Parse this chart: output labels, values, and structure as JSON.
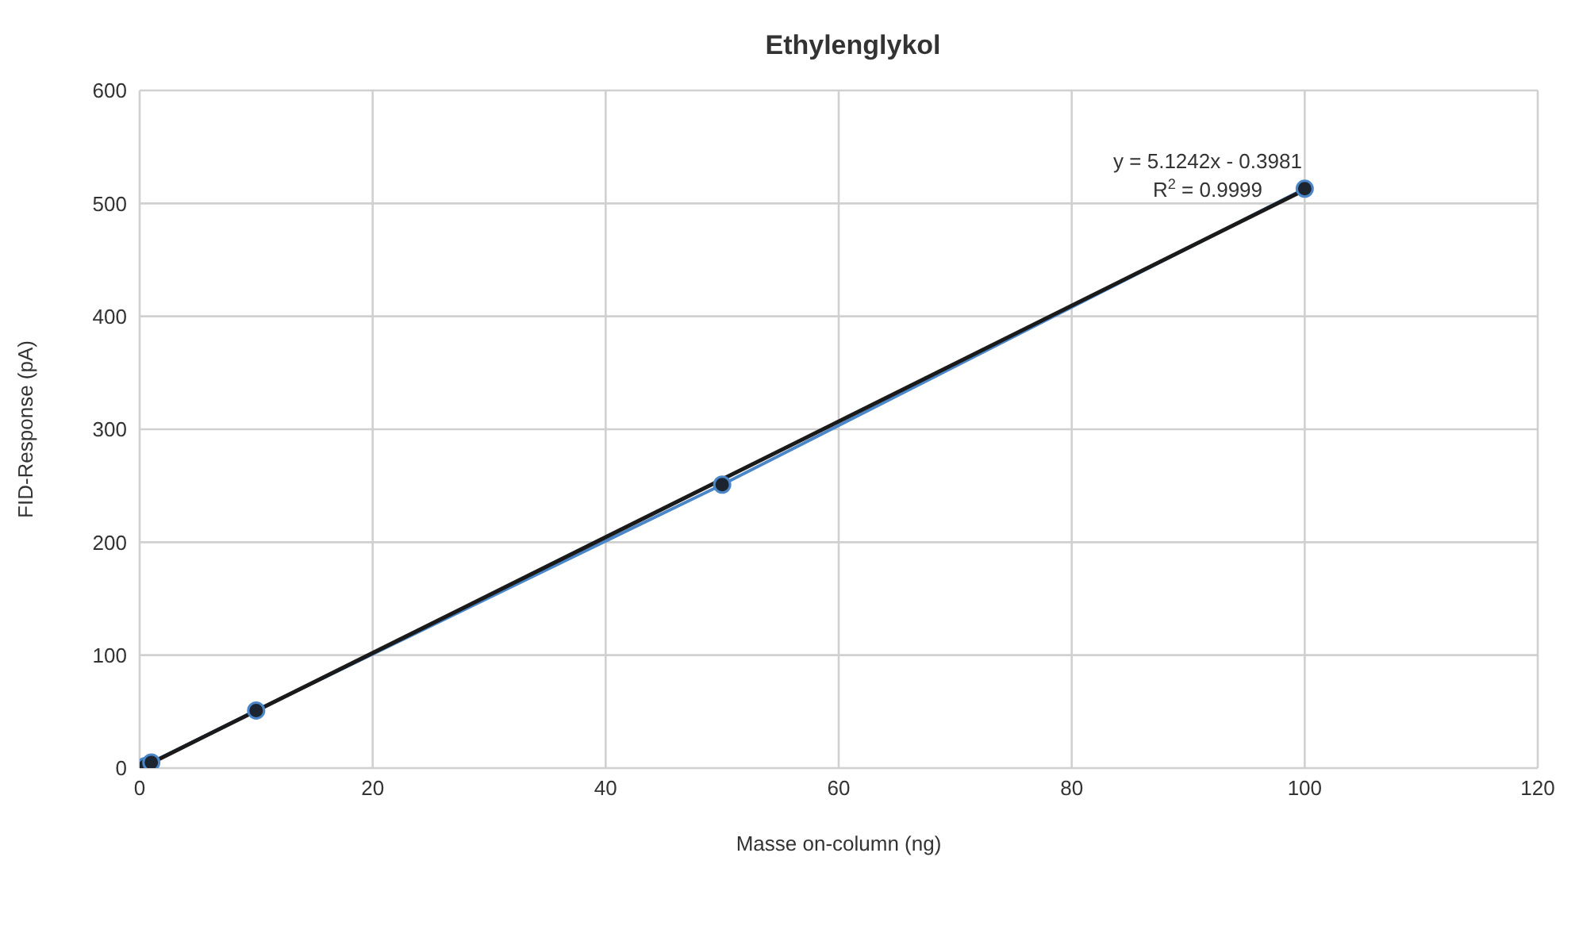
{
  "chart_data": {
    "type": "line",
    "title": "Ethylenglykol",
    "xlabel": "Masse on-column (ng)",
    "ylabel": "FID-Response (pA)",
    "series": [
      {
        "color": "#4a86c8",
        "marker": "circle",
        "x": [
          0.5,
          1,
          10,
          50,
          100
        ],
        "values": [
          2,
          5,
          51,
          251,
          513
        ]
      },
      {
        "color": "#1a1a1a",
        "marker": "none",
        "x": [
          0.5,
          100
        ],
        "values": [
          2,
          512
        ]
      }
    ],
    "xlim": [
      0,
      120
    ],
    "xticks": [
      0,
      20,
      40,
      60,
      80,
      100,
      120
    ],
    "ylim": [
      0,
      600
    ],
    "yticks": [
      0,
      100,
      200,
      300,
      400,
      500,
      600
    ],
    "grid": true,
    "annotations": [
      "y = 5.1242x - 0.3981",
      "R$^{2}$ = 0.9999"
    ]
  }
}
